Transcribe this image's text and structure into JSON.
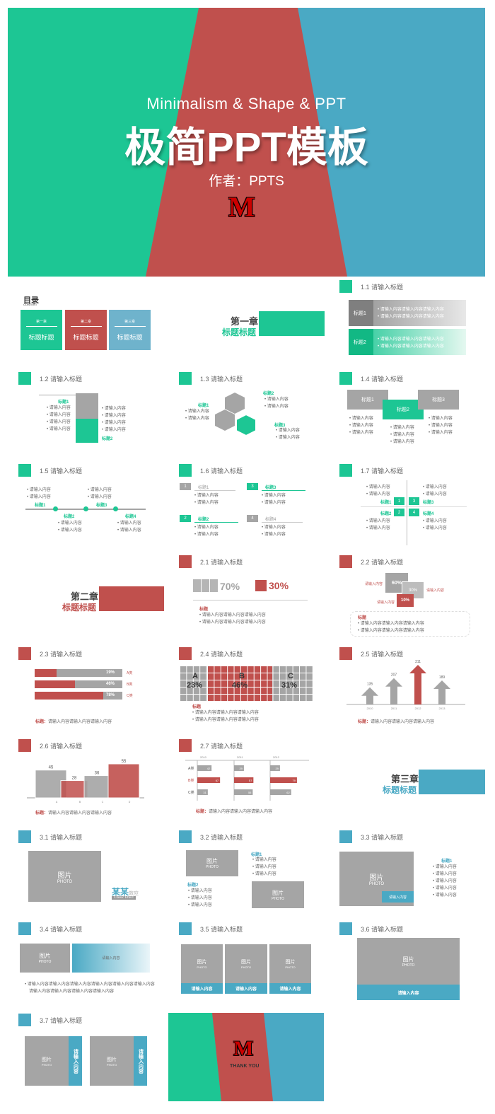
{
  "cover": {
    "subtitle": "Minimalism & Shape & PPT",
    "title": "极简PPT模板",
    "author": "作者：PPTS",
    "logo": "M"
  },
  "toc": {
    "title": "目录",
    "en": "CONTENT",
    "items": [
      {
        "k": "第一章",
        "v": "标题标题"
      },
      {
        "k": "第二章",
        "v": "标题标题"
      },
      {
        "k": "第三章",
        "v": "标题标题"
      }
    ]
  },
  "ch1": {
    "title": "第一章",
    "sub": "标题标题"
  },
  "ch2": {
    "title": "第二章",
    "sub": "标题标题"
  },
  "ch3": {
    "title": "第三章",
    "sub": "标题标题"
  },
  "s": {
    "s11": "1.1 请输入标题",
    "s12": "1.2 请输入标题",
    "s13": "1.3 请输入标题",
    "s14": "1.4 请输入标题",
    "s15": "1.5 请输入标题",
    "s16": "1.6 请输入标题",
    "s17": "1.7 请输入标题",
    "s21": "2.1 请输入标题",
    "s22": "2.2 请输入标题",
    "s23": "2.3 请输入标题",
    "s24": "2.4 请输入标题",
    "s25": "2.5 请输入标题",
    "s26": "2.6 请输入标题",
    "s27": "2.7 请输入标题",
    "s31": "3.1 请输入标题",
    "s32": "3.2 请输入标题",
    "s33": "3.3 请输入标题",
    "s34": "3.4 请输入标题",
    "s35": "3.5 请输入标题",
    "s36": "3.6 请输入标题",
    "s37": "3.7 请输入标题"
  },
  "txt": {
    "content": "请输入内容",
    "long": "请输入内容请输入内容请输入内容",
    "label": "标题",
    "label1": "标题1",
    "label2": "标题2",
    "label3": "标题3",
    "label4": "标题4",
    "note": "请输入内容请输入内容请输入内容",
    "img": "图片",
    "photo": "PHOTO",
    "input": "请输入内容",
    "long2": "请输入内容请输入内容请输入内容请输入内容请输入内容请输入内容",
    "long3": "请输入内容请输入内容请输入内容请输入内容",
    "brand": "某某",
    "brand2": "效应",
    "brand3": "Classic  Effect",
    "thank": "THANK YOU",
    "lbl": "标题："
  },
  "n": {
    "n1": "1",
    "n2": "2",
    "n3": "3",
    "n4": "4"
  },
  "s21d": {
    "p1": "70%",
    "p2": "30%"
  },
  "s22d": {
    "a": "60%",
    "b": "30%",
    "c": "10%"
  },
  "s23d": {
    "bars": [
      {
        "v": "19%",
        "l": "A类"
      },
      {
        "v": "46%",
        "l": "B类"
      },
      {
        "v": "78%",
        "l": "C类"
      }
    ]
  },
  "s24d": {
    "a": "A",
    "av": "23%",
    "b": "B",
    "bv": "46%",
    "c": "C",
    "cv": "31%"
  },
  "s25d": {
    "vals": [
      "135",
      "207",
      "311",
      "189"
    ],
    "years": [
      "2010",
      "2011",
      "2012",
      "2013"
    ]
  },
  "s26d": {
    "vals": [
      "45",
      "28",
      "36",
      "55"
    ],
    "cats": [
      "A",
      "B",
      "C",
      "D"
    ]
  },
  "s27d": {
    "years": [
      "2010",
      "2011",
      "2012"
    ],
    "rows": [
      {
        "l": "A类",
        "v": [
          "42",
          "29",
          "29"
        ]
      },
      {
        "l": "B类",
        "v": [
          "67",
          "57",
          "79"
        ]
      },
      {
        "l": "C类",
        "v": [
          "31",
          "55",
          "62"
        ]
      }
    ]
  }
}
